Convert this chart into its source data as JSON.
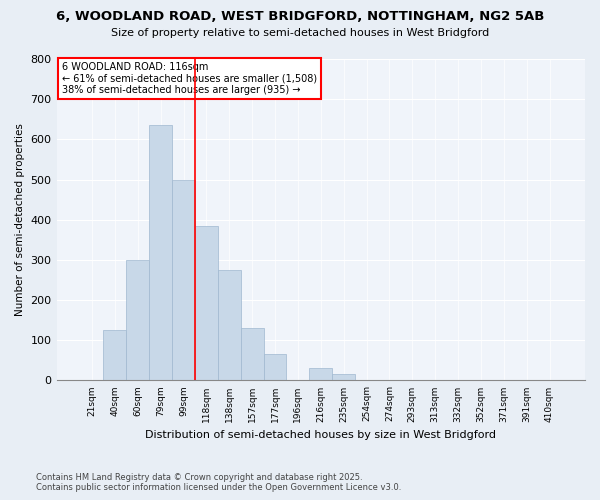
{
  "title": "6, WOODLAND ROAD, WEST BRIDGFORD, NOTTINGHAM, NG2 5AB",
  "subtitle": "Size of property relative to semi-detached houses in West Bridgford",
  "xlabel": "Distribution of semi-detached houses by size in West Bridgford",
  "ylabel": "Number of semi-detached properties",
  "categories": [
    "21sqm",
    "40sqm",
    "60sqm",
    "79sqm",
    "99sqm",
    "118sqm",
    "138sqm",
    "157sqm",
    "177sqm",
    "196sqm",
    "216sqm",
    "235sqm",
    "254sqm",
    "274sqm",
    "293sqm",
    "313sqm",
    "332sqm",
    "352sqm",
    "371sqm",
    "391sqm",
    "410sqm"
  ],
  "values": [
    0,
    125,
    300,
    635,
    500,
    385,
    275,
    130,
    65,
    0,
    30,
    15,
    0,
    0,
    0,
    0,
    0,
    0,
    0,
    0,
    0
  ],
  "bar_color": "#c8d8e8",
  "bar_edge_color": "#a0b8d0",
  "vline_color": "red",
  "vline_pos": 4.5,
  "annotation_title": "6 WOODLAND ROAD: 116sqm",
  "annotation_line1": "← 61% of semi-detached houses are smaller (1,508)",
  "annotation_line2": "38% of semi-detached houses are larger (935) →",
  "ylim": [
    0,
    800
  ],
  "yticks": [
    0,
    100,
    200,
    300,
    400,
    500,
    600,
    700,
    800
  ],
  "background_color": "#e8eef5",
  "plot_bg_color": "#f0f4fa",
  "footnote1": "Contains HM Land Registry data © Crown copyright and database right 2025.",
  "footnote2": "Contains public sector information licensed under the Open Government Licence v3.0."
}
